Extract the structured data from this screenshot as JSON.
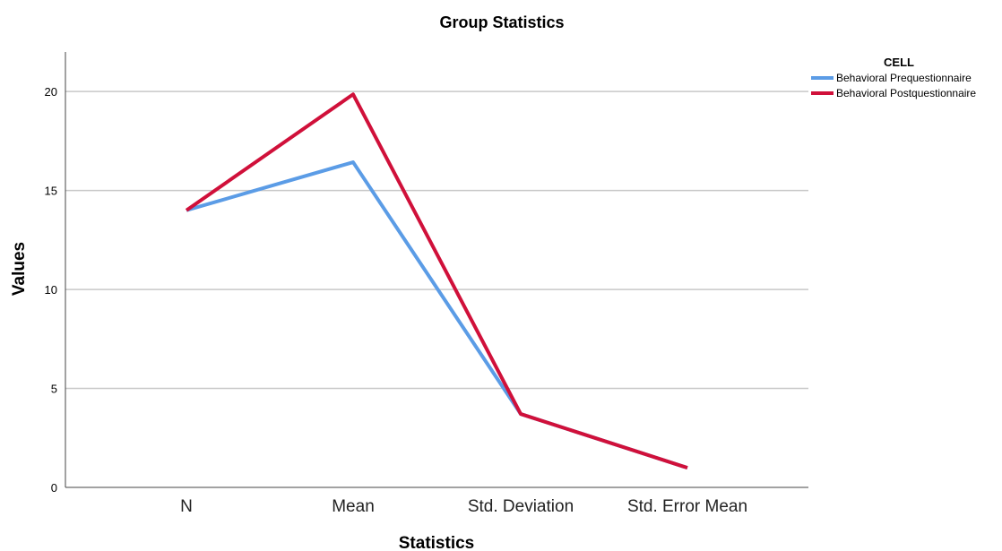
{
  "chart_data": {
    "type": "line",
    "title": "Group Statistics",
    "xlabel": "Statistics",
    "ylabel": "Values",
    "categories": [
      "N",
      "Mean",
      "Std. Deviation",
      "Std. Error Mean"
    ],
    "ylim": [
      0,
      22
    ],
    "yticks": [
      0,
      5,
      10,
      15,
      20
    ],
    "grid": true,
    "legend_title": "CELL",
    "legend_position": "top-right",
    "series": [
      {
        "name": "Behavioral Prequestionnaire",
        "values": [
          14,
          16.43,
          3.71,
          0.99
        ],
        "color": "#5b9ce6"
      },
      {
        "name": "Behavioral Postquestionnaire",
        "values": [
          14,
          19.86,
          3.71,
          0.99
        ],
        "color": "#d0103a"
      }
    ]
  }
}
